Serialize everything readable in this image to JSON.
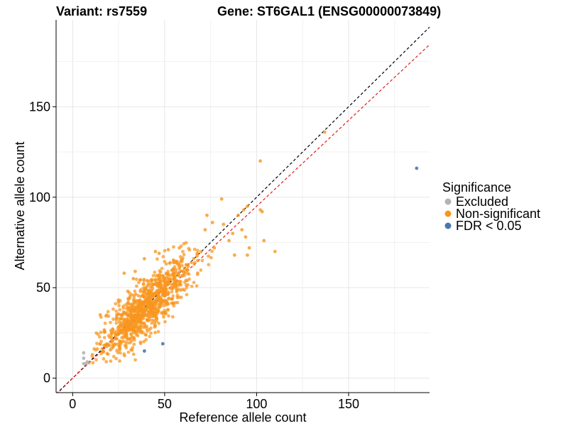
{
  "chart_data": {
    "type": "scatter",
    "title_left": "Variant: rs7559",
    "title_right": "Gene: ST6GAL1 (ENSG00000073849)",
    "xlabel": "Reference allele count",
    "ylabel": "Alternative allele count",
    "xlim": [
      -9,
      194
    ],
    "ylim": [
      -8,
      198
    ],
    "xticks": [
      0,
      50,
      100,
      150
    ],
    "yticks": [
      0,
      50,
      100,
      150
    ],
    "grid": true,
    "reference_lines": [
      {
        "name": "identity",
        "slope": 1.0,
        "color": "#000000",
        "dash": "dashed"
      },
      {
        "name": "fit",
        "slope": 0.95,
        "color": "#e41a1c",
        "dash": "dashed"
      }
    ],
    "legend": {
      "title": "Significance",
      "position": "right",
      "entries": [
        {
          "label": "Excluded",
          "color": "#b3b3b3"
        },
        {
          "label": "Non-significant",
          "color": "#f8961e"
        },
        {
          "label": "FDR < 0.05",
          "color": "#4a78ab"
        }
      ]
    },
    "series": [
      {
        "name": "Excluded",
        "color": "#b3b3b3",
        "points": [
          [
            6,
            14
          ],
          [
            6,
            11
          ],
          [
            6,
            8
          ],
          [
            7,
            8
          ],
          [
            8,
            9
          ]
        ]
      },
      {
        "name": "FDR < 0.05",
        "color": "#4a78ab",
        "points": [
          [
            187,
            116
          ],
          [
            39,
            15
          ],
          [
            49,
            19
          ]
        ]
      },
      {
        "name": "Non-significant",
        "color": "#f8961e",
        "n_cluster_points": 950,
        "cluster_region": {
          "x": [
            8,
            80
          ],
          "y": [
            8,
            75
          ],
          "center": [
            40,
            38
          ]
        },
        "points": [
          [
            137,
            136
          ],
          [
            102,
            120
          ],
          [
            95,
            95
          ],
          [
            93,
            93
          ],
          [
            90,
            90
          ],
          [
            81,
            99
          ],
          [
            104,
            76
          ],
          [
            110,
            70
          ],
          [
            96,
            72
          ],
          [
            103,
            92
          ],
          [
            102,
            93
          ],
          [
            87,
            80
          ],
          [
            82,
            85
          ],
          [
            94,
            78
          ],
          [
            92,
            82
          ],
          [
            73,
            90
          ],
          [
            76,
            86
          ],
          [
            72,
            82
          ],
          [
            85,
            76
          ],
          [
            77,
            72
          ],
          [
            88,
            68
          ],
          [
            95,
            68
          ],
          [
            24,
            35
          ],
          [
            15,
            35
          ],
          [
            25,
            42
          ],
          [
            30,
            48
          ],
          [
            33,
            55
          ],
          [
            34,
            59
          ],
          [
            39,
            66
          ],
          [
            47,
            69
          ],
          [
            52,
            71
          ],
          [
            45,
            70
          ],
          [
            58,
            72
          ],
          [
            28,
            58
          ],
          [
            41,
            46
          ],
          [
            48,
            50
          ],
          [
            55,
            55
          ],
          [
            62,
            60
          ],
          [
            68,
            65
          ],
          [
            36,
            40
          ],
          [
            44,
            45
          ],
          [
            50,
            47
          ]
        ]
      }
    ]
  }
}
